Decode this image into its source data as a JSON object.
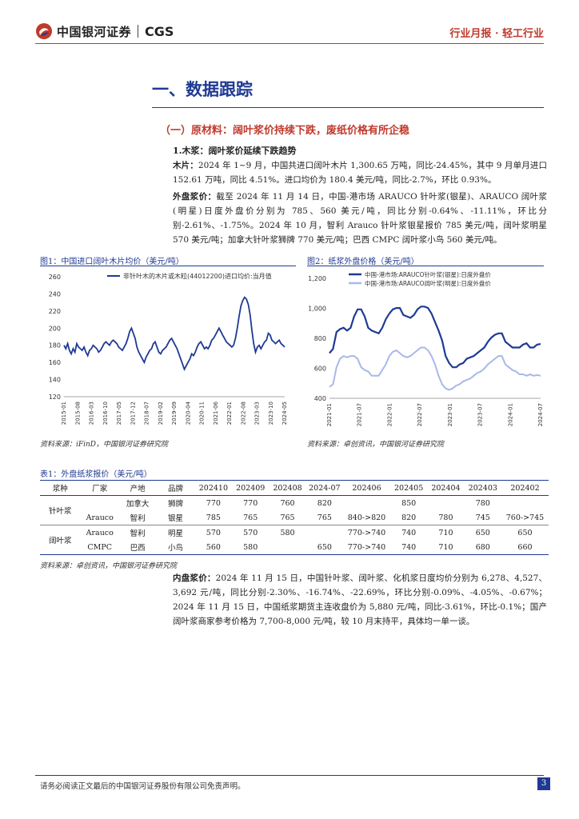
{
  "header": {
    "brand_cn": "中国银河证券",
    "brand_en": "CGS",
    "report_type": "行业月报 · 轻工行业"
  },
  "section": {
    "title": "一、数据跟踪",
    "subtitle": "（一）原材料：阔叶浆价持续下跌，废纸价格有所企稳",
    "sub2": "1.木浆：阔叶浆价延续下跌趋势"
  },
  "paragraphs": {
    "p1_label": "木片：",
    "p1_text": "2024 年 1~9 月，中国共进口阔叶木片 1,300.65 万吨，同比-24.45%，其中 9 月单月进口 152.61 万吨，同比 4.51%。进口均价为 180.4 美元/吨，同比-2.7%，环比 0.93%。",
    "p2_label": "外盘浆价：",
    "p2_text": "截至 2024 年 11 月 14 日，中国-港市场 ARAUCO 针叶浆(银星)、ARAUCO 阔叶浆(明星)日度外盘价分别为 785、560 美元/吨，同比分别-0.64%、-11.11%，环比分别-2.61%、-1.75%。2024 年 10 月，智利 Arauco 针叶浆银星报价 785 美元/吨，阔叶浆明星 570 美元/吨；加拿大针叶浆狮牌 770 美元/吨；巴西 CMPC 阔叶浆小鸟 560 美元/吨。",
    "p3_label": "内盘浆价：",
    "p3_text": "2024 年 11 月 15 日，中国针叶浆、阔叶浆、化机浆日度均价分别为 6,278、4,527、3,692 元/吨，同比分别-2.30%、-16.74%、-22.69%，环比分别-0.09%、-4.05%、-0.67%；2024 年 11 月 15 日，中国纸浆期货主连收盘价为 5,880 元/吨，同比-3.61%，环比-0.1%；国产阔叶浆商家参考价格为 7,700-8,000 元/吨，较 10 月末持平，具体均一单一谈。"
  },
  "chart1": {
    "title": "图1：中国进口阔叶木片均价（美元/吨）",
    "source": "资料来源：iFinD，中国银河证券研究院",
    "chart_data": {
      "type": "line",
      "title": "图1：中国进口阔叶木片均价（美元/吨）",
      "series": [
        {
          "name": "非针叶木的木片或木粒(44012200)进口均价:当月值",
          "color": "#1f3a93",
          "values": [
            180,
            176,
            182,
            174,
            170,
            176,
            172,
            182,
            178,
            176,
            174,
            178,
            172,
            168,
            174,
            176,
            180,
            178,
            176,
            172,
            174,
            178,
            182,
            184,
            182,
            180,
            184,
            186,
            184,
            182,
            178,
            176,
            174,
            178,
            182,
            188,
            196,
            200,
            194,
            188,
            178,
            172,
            168,
            164,
            160,
            166,
            170,
            174,
            176,
            182,
            184,
            178,
            172,
            170,
            174,
            176,
            178,
            182,
            186,
            188,
            184,
            180,
            176,
            170,
            164,
            158,
            152,
            156,
            160,
            164,
            170,
            168,
            172,
            178,
            182,
            184,
            180,
            176,
            178,
            176,
            180,
            186,
            188,
            192,
            196,
            200,
            196,
            192,
            188,
            184,
            182,
            180,
            178,
            180,
            188,
            200,
            214,
            226,
            232,
            236,
            234,
            228,
            216,
            198,
            182,
            172,
            178,
            180,
            176,
            180,
            184,
            186,
            194,
            192,
            186,
            184,
            182,
            184,
            186,
            182,
            180,
            178
          ]
        }
      ],
      "ylim": [
        120,
        260
      ],
      "yticks": [
        "260",
        "240",
        "220",
        "200",
        "180",
        "160",
        "140",
        "120"
      ],
      "xticks": [
        "2015-01",
        "2015-08",
        "2016-03",
        "2016-10",
        "2017-05",
        "2017-12",
        "2018-07",
        "2019-02",
        "2019-09",
        "2020-04",
        "2020-11",
        "2021-06",
        "2022-01",
        "2022-08",
        "2023-03",
        "2023-10",
        "2024-05"
      ]
    }
  },
  "chart2": {
    "title": "图2：纸浆外盘价格（美元/吨）",
    "source": "资料来源：卓创资讯，中国银河证券研究院",
    "chart_data": {
      "type": "line",
      "title": "图2：纸浆外盘价格（美元/吨）",
      "series": [
        {
          "name": "中国-港市场:ARAUCO针叶浆(银星):日度外盘价",
          "color": "#1f3a93",
          "values": [
            720,
            750,
            870,
            890,
            900,
            880,
            900,
            980,
            1030,
            1030,
            980,
            900,
            880,
            870,
            860,
            900,
            960,
            1000,
            1030,
            1040,
            1040,
            990,
            980,
            970,
            990,
            1030,
            1050,
            1050,
            1040,
            1000,
            940,
            880,
            810,
            700,
            650,
            620,
            620,
            640,
            650,
            680,
            690,
            700,
            720,
            740,
            760,
            800,
            830,
            850,
            860,
            860,
            800,
            780,
            760,
            760,
            760,
            780,
            790,
            760,
            760,
            780,
            785
          ]
        },
        {
          "name": "中国-港市场:ARAUCO阔叶浆(明星):日度外盘价",
          "color": "#a9b8e8",
          "values": [
            480,
            500,
            620,
            680,
            700,
            690,
            700,
            700,
            680,
            620,
            600,
            590,
            560,
            560,
            560,
            600,
            640,
            700,
            730,
            740,
            720,
            700,
            690,
            700,
            720,
            740,
            760,
            760,
            740,
            700,
            640,
            560,
            500,
            470,
            460,
            470,
            490,
            500,
            520,
            530,
            540,
            560,
            580,
            590,
            610,
            640,
            660,
            680,
            700,
            700,
            640,
            620,
            600,
            590,
            570,
            570,
            560,
            570,
            560,
            565,
            560
          ]
        }
      ],
      "ylim": [
        400,
        1250
      ],
      "yticks": [
        "1,200",
        "1,000",
        "800",
        "600",
        "400"
      ],
      "xticks": [
        "2021-01",
        "2021-07",
        "2022-01",
        "2022-07",
        "2023-01",
        "2023-07",
        "2024-01",
        "2024-07"
      ]
    }
  },
  "table": {
    "title": "表1：外盘纸浆报价（美元/吨）",
    "source": "资料来源：卓创资讯，中国银河证券研究院",
    "headers": [
      "浆种",
      "厂家",
      "产地",
      "品牌",
      "202410",
      "202409",
      "202408",
      "2024-07",
      "202406",
      "202405",
      "202404",
      "202403",
      "202402"
    ],
    "rows": [
      [
        "针叶浆",
        "",
        "加拿大",
        "狮牌",
        "770",
        "770",
        "760",
        "820",
        "",
        "850",
        "",
        "780",
        ""
      ],
      [
        "",
        "Arauco",
        "智利",
        "银星",
        "785",
        "765",
        "765",
        "765",
        "840->820",
        "820",
        "780",
        "745",
        "760->745"
      ],
      [
        "阔叶浆",
        "Arauco",
        "智利",
        "明星",
        "570",
        "570",
        "580",
        "",
        "770->740",
        "740",
        "710",
        "650",
        "650"
      ],
      [
        "",
        "CMPC",
        "巴西",
        "小鸟",
        "560",
        "580",
        "",
        "650",
        "770->740",
        "740",
        "710",
        "680",
        "660"
      ]
    ]
  },
  "footer": {
    "disclaimer": "请务必阅读正文最后的中国银河证券股份有限公司免责声明。",
    "page": "3"
  }
}
